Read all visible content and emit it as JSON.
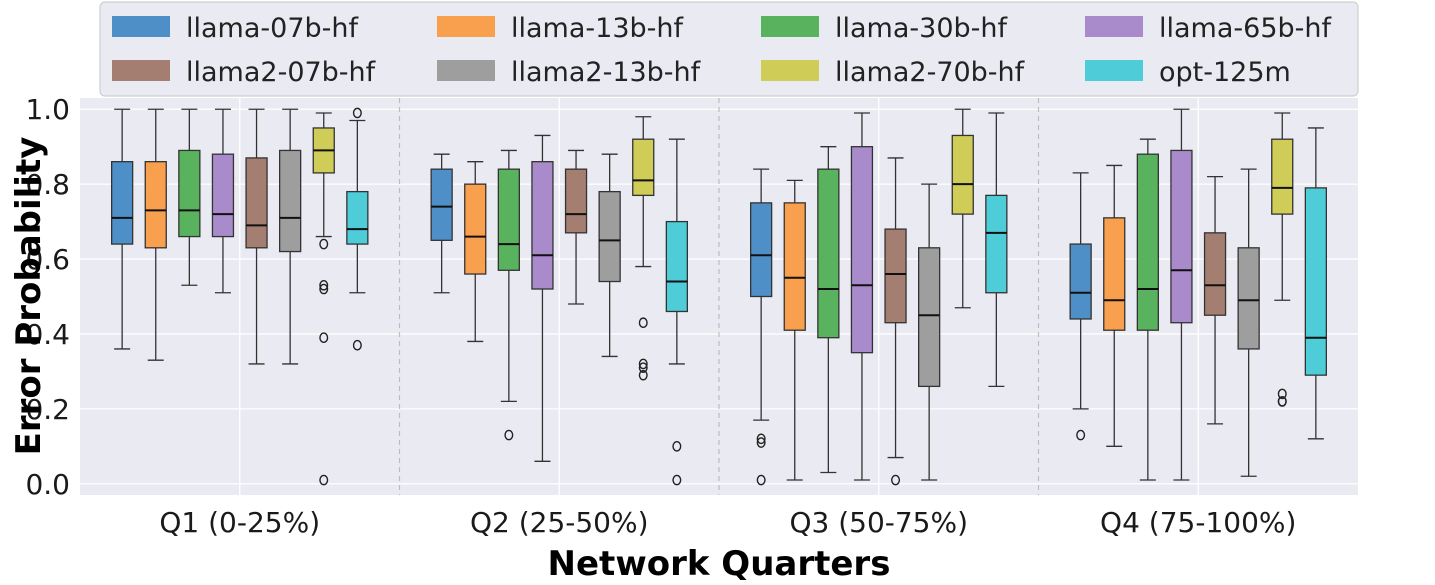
{
  "chart_data": {
    "type": "box",
    "xlabel": "Network Quarters",
    "ylabel": "Error Probability",
    "ylim": [
      -0.03,
      1.03
    ],
    "yticks": [
      "0.0",
      "0.2",
      "0.4",
      "0.6",
      "0.8",
      "1.0"
    ],
    "grid": true,
    "legend_position": "top",
    "categories": [
      "Q1 (0-25%)",
      "Q2 (25-50%)",
      "Q3 (50-75%)",
      "Q4 (75-100%)"
    ],
    "series": [
      {
        "name": "llama-07b-hf",
        "color": "#4f8fc8",
        "boxes": [
          {
            "whislo": 0.36,
            "q1": 0.64,
            "med": 0.71,
            "q3": 0.86,
            "whishi": 1.0,
            "fliers": []
          },
          {
            "whislo": 0.51,
            "q1": 0.65,
            "med": 0.74,
            "q3": 0.84,
            "whishi": 0.88,
            "fliers": []
          },
          {
            "whislo": 0.17,
            "q1": 0.5,
            "med": 0.61,
            "q3": 0.75,
            "whishi": 0.84,
            "fliers": [
              0.11,
              0.12,
              0.01
            ]
          },
          {
            "whislo": 0.2,
            "q1": 0.44,
            "med": 0.51,
            "q3": 0.64,
            "whishi": 0.83,
            "fliers": [
              0.13
            ]
          }
        ]
      },
      {
        "name": "llama-13b-hf",
        "color": "#f9a04e",
        "boxes": [
          {
            "whislo": 0.33,
            "q1": 0.63,
            "med": 0.73,
            "q3": 0.86,
            "whishi": 1.0,
            "fliers": []
          },
          {
            "whislo": 0.38,
            "q1": 0.56,
            "med": 0.66,
            "q3": 0.8,
            "whishi": 0.86,
            "fliers": []
          },
          {
            "whislo": 0.01,
            "q1": 0.41,
            "med": 0.55,
            "q3": 0.75,
            "whishi": 0.81,
            "fliers": []
          },
          {
            "whislo": 0.1,
            "q1": 0.41,
            "med": 0.49,
            "q3": 0.71,
            "whishi": 0.85,
            "fliers": []
          }
        ]
      },
      {
        "name": "llama-30b-hf",
        "color": "#59b25d",
        "boxes": [
          {
            "whislo": 0.53,
            "q1": 0.66,
            "med": 0.73,
            "q3": 0.89,
            "whishi": 1.0,
            "fliers": []
          },
          {
            "whislo": 0.22,
            "q1": 0.57,
            "med": 0.64,
            "q3": 0.84,
            "whishi": 0.89,
            "fliers": [
              0.13
            ]
          },
          {
            "whislo": 0.03,
            "q1": 0.39,
            "med": 0.52,
            "q3": 0.84,
            "whishi": 0.9,
            "fliers": []
          },
          {
            "whislo": 0.01,
            "q1": 0.41,
            "med": 0.52,
            "q3": 0.88,
            "whishi": 0.92,
            "fliers": []
          }
        ]
      },
      {
        "name": "llama-65b-hf",
        "color": "#a98bcc",
        "boxes": [
          {
            "whislo": 0.51,
            "q1": 0.66,
            "med": 0.72,
            "q3": 0.88,
            "whishi": 1.0,
            "fliers": []
          },
          {
            "whislo": 0.06,
            "q1": 0.52,
            "med": 0.61,
            "q3": 0.86,
            "whishi": 0.93,
            "fliers": []
          },
          {
            "whislo": 0.01,
            "q1": 0.35,
            "med": 0.53,
            "q3": 0.9,
            "whishi": 0.99,
            "fliers": []
          },
          {
            "whislo": 0.01,
            "q1": 0.43,
            "med": 0.57,
            "q3": 0.89,
            "whishi": 1.0,
            "fliers": []
          }
        ]
      },
      {
        "name": "llama2-07b-hf",
        "color": "#a57e72",
        "boxes": [
          {
            "whislo": 0.32,
            "q1": 0.63,
            "med": 0.69,
            "q3": 0.87,
            "whishi": 1.0,
            "fliers": []
          },
          {
            "whislo": 0.48,
            "q1": 0.67,
            "med": 0.72,
            "q3": 0.84,
            "whishi": 0.89,
            "fliers": []
          },
          {
            "whislo": 0.07,
            "q1": 0.43,
            "med": 0.56,
            "q3": 0.68,
            "whishi": 0.87,
            "fliers": [
              0.01
            ]
          },
          {
            "whislo": 0.16,
            "q1": 0.45,
            "med": 0.53,
            "q3": 0.67,
            "whishi": 0.82,
            "fliers": []
          }
        ]
      },
      {
        "name": "llama2-13b-hf",
        "color": "#9e9e9e",
        "boxes": [
          {
            "whislo": 0.32,
            "q1": 0.62,
            "med": 0.71,
            "q3": 0.89,
            "whishi": 1.0,
            "fliers": []
          },
          {
            "whislo": 0.34,
            "q1": 0.54,
            "med": 0.65,
            "q3": 0.78,
            "whishi": 0.88,
            "fliers": []
          },
          {
            "whislo": 0.01,
            "q1": 0.26,
            "med": 0.45,
            "q3": 0.63,
            "whishi": 0.8,
            "fliers": []
          },
          {
            "whislo": 0.02,
            "q1": 0.36,
            "med": 0.49,
            "q3": 0.63,
            "whishi": 0.84,
            "fliers": []
          }
        ]
      },
      {
        "name": "llama2-70b-hf",
        "color": "#cfcd58",
        "boxes": [
          {
            "whislo": 0.66,
            "q1": 0.83,
            "med": 0.89,
            "q3": 0.95,
            "whishi": 0.99,
            "fliers": [
              0.64,
              0.53,
              0.52,
              0.39,
              0.01
            ]
          },
          {
            "whislo": 0.58,
            "q1": 0.77,
            "med": 0.81,
            "q3": 0.92,
            "whishi": 0.98,
            "fliers": [
              0.43,
              0.32,
              0.31,
              0.29
            ]
          },
          {
            "whislo": 0.47,
            "q1": 0.72,
            "med": 0.8,
            "q3": 0.93,
            "whishi": 1.0,
            "fliers": []
          },
          {
            "whislo": 0.49,
            "q1": 0.72,
            "med": 0.79,
            "q3": 0.92,
            "whishi": 0.99,
            "fliers": [
              0.24,
              0.22,
              0.22
            ]
          }
        ]
      },
      {
        "name": "opt-125m",
        "color": "#4ecdd9",
        "boxes": [
          {
            "whislo": 0.51,
            "q1": 0.64,
            "med": 0.68,
            "q3": 0.78,
            "whishi": 0.97,
            "fliers": [
              0.99,
              0.37
            ]
          },
          {
            "whislo": 0.32,
            "q1": 0.46,
            "med": 0.54,
            "q3": 0.7,
            "whishi": 0.92,
            "fliers": [
              0.1,
              0.01
            ]
          },
          {
            "whislo": 0.26,
            "q1": 0.51,
            "med": 0.67,
            "q3": 0.77,
            "whishi": 0.99,
            "fliers": []
          },
          {
            "whislo": 0.12,
            "q1": 0.29,
            "med": 0.39,
            "q3": 0.79,
            "whishi": 0.95,
            "fliers": []
          }
        ]
      }
    ]
  }
}
